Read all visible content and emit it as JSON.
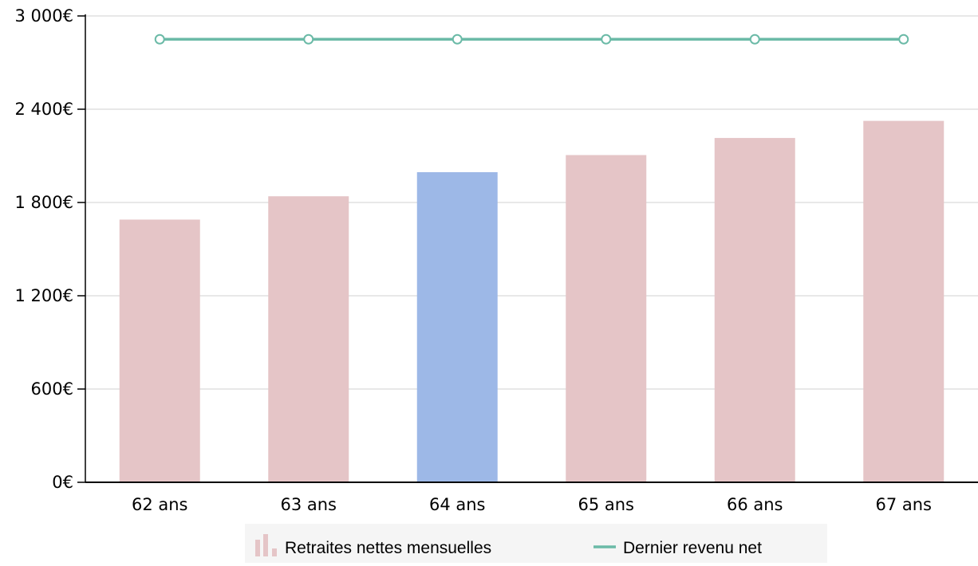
{
  "chart_data": {
    "type": "bar",
    "categories": [
      "62 ans",
      "63 ans",
      "64 ans",
      "65 ans",
      "66 ans",
      "67 ans"
    ],
    "series": [
      {
        "name": "Retraites nettes mensuelles",
        "type": "bar",
        "values": [
          1690,
          1840,
          1995,
          2105,
          2215,
          2325
        ],
        "color": "#e5c5c7",
        "highlight_index": 2,
        "highlight_color": "#9db8e7"
      },
      {
        "name": "Dernier revenu net",
        "type": "line",
        "values": [
          2850,
          2850,
          2850,
          2850,
          2850,
          2850
        ],
        "color": "#6bbaa7"
      }
    ],
    "title": "",
    "xlabel": "",
    "ylabel": "",
    "ylim": [
      0,
      3000
    ],
    "yticks": [
      0,
      600,
      1200,
      1800,
      2400,
      3000
    ],
    "ytick_labels": [
      "0€",
      "600€",
      "1 200€",
      "1 800€",
      "2 400€",
      "3 000€"
    ],
    "grid": true,
    "legend_position": "bottom-center",
    "colors": {
      "grid": "#e0e0e0",
      "axis": "#000000",
      "legend_background": "#f5f5f5"
    }
  }
}
